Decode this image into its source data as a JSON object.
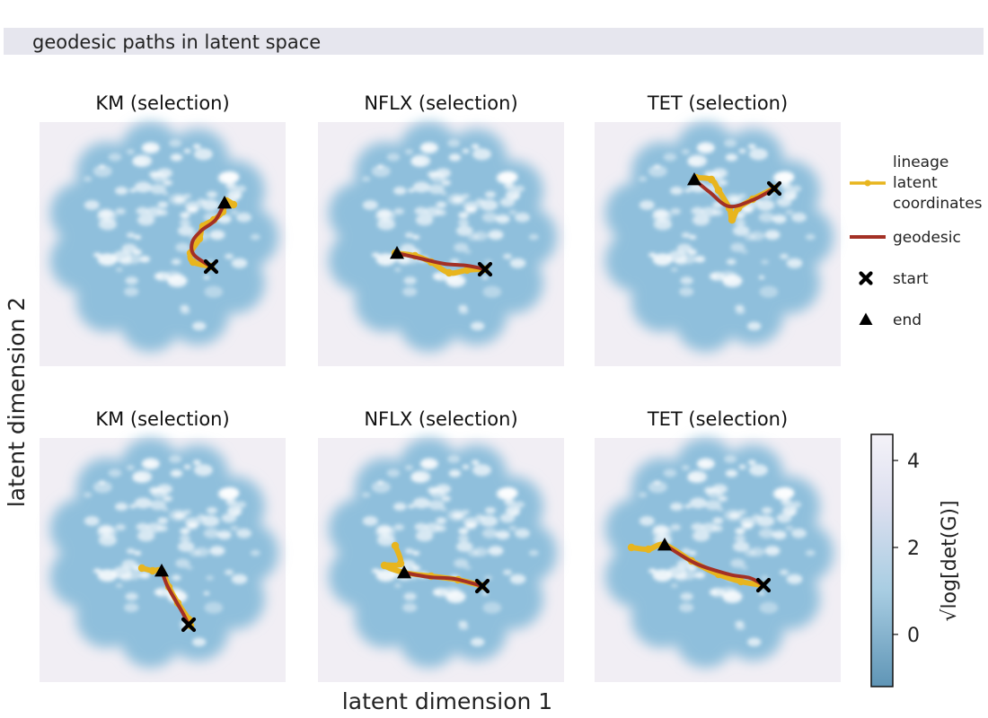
{
  "banner": {
    "text": "geodesic paths in latent space"
  },
  "chart_data": {
    "type": "scatter",
    "xlabel": "latent dimension 1",
    "ylabel": "latent dimension 2",
    "panels": [
      {
        "title": "KM (selection)",
        "row": 0,
        "col": 0,
        "lineage": [
          [
            235,
            297
          ],
          [
            215,
            292
          ],
          [
            212,
            282
          ],
          [
            222,
            266
          ],
          [
            226,
            252
          ],
          [
            238,
            245
          ],
          [
            248,
            236
          ],
          [
            252,
            224
          ],
          [
            260,
            228
          ]
        ],
        "geodesic": [
          [
            235,
            297
          ],
          [
            216,
            284
          ],
          [
            214,
            270
          ],
          [
            224,
            257
          ],
          [
            240,
            245
          ],
          [
            250,
            226
          ]
        ],
        "start": [
          235,
          297
        ],
        "end": [
          250,
          226
        ]
      },
      {
        "title": "NFLX (selection)",
        "row": 0,
        "col": 1,
        "lineage": [
          [
            440,
            282
          ],
          [
            462,
            285
          ],
          [
            480,
            292
          ],
          [
            500,
            304
          ],
          [
            520,
            301
          ],
          [
            540,
            300
          ]
        ],
        "geodesic": [
          [
            442,
            282
          ],
          [
            468,
            288
          ],
          [
            495,
            294
          ],
          [
            520,
            296
          ],
          [
            540,
            300
          ]
        ],
        "start": [
          540,
          300
        ],
        "end": [
          442,
          282
        ]
      },
      {
        "title": "TET (selection)",
        "row": 0,
        "col": 2,
        "lineage": [
          [
            775,
            198
          ],
          [
            792,
            200
          ],
          [
            800,
            212
          ],
          [
            812,
            232
          ],
          [
            815,
            245
          ],
          [
            822,
            232
          ],
          [
            838,
            222
          ],
          [
            862,
            210
          ]
        ],
        "geodesic": [
          [
            773,
            200
          ],
          [
            790,
            214
          ],
          [
            812,
            230
          ],
          [
            840,
            222
          ],
          [
            862,
            210
          ]
        ],
        "start": [
          862,
          210
        ],
        "end": [
          773,
          200
        ]
      },
      {
        "title": "KM (selection)",
        "row": 1,
        "col": 0,
        "lineage": [
          [
            158,
            633
          ],
          [
            170,
            636
          ],
          [
            180,
            636
          ],
          [
            188,
            654
          ],
          [
            198,
            672
          ],
          [
            210,
            690
          ],
          [
            212,
            697
          ]
        ],
        "geodesic": [
          [
            180,
            636
          ],
          [
            186,
            652
          ],
          [
            196,
            670
          ],
          [
            204,
            684
          ],
          [
            210,
            696
          ]
        ],
        "start": [
          210,
          696
        ],
        "end": [
          180,
          636
        ]
      },
      {
        "title": "NFLX (selection)",
        "row": 1,
        "col": 1,
        "lineage": [
          [
            440,
            608
          ],
          [
            446,
            628
          ],
          [
            428,
            630
          ],
          [
            450,
            638
          ],
          [
            480,
            642
          ],
          [
            510,
            646
          ],
          [
            537,
            653
          ]
        ],
        "geodesic": [
          [
            450,
            638
          ],
          [
            478,
            643
          ],
          [
            506,
            645
          ],
          [
            537,
            653
          ]
        ],
        "start": [
          537,
          653
        ],
        "end": [
          450,
          638
        ]
      },
      {
        "title": "TET (selection)",
        "row": 1,
        "col": 2,
        "lineage": [
          [
            703,
            610
          ],
          [
            722,
            612
          ],
          [
            740,
            607
          ],
          [
            770,
            625
          ],
          [
            800,
            640
          ],
          [
            825,
            648
          ],
          [
            848,
            652
          ]
        ],
        "geodesic": [
          [
            740,
            607
          ],
          [
            775,
            628
          ],
          [
            812,
            640
          ],
          [
            835,
            644
          ],
          [
            850,
            652
          ]
        ],
        "start": [
          850,
          652
        ],
        "end": [
          740,
          607
        ]
      }
    ],
    "legend": [
      {
        "label": "lineage",
        "label2": "latent",
        "label3": "coordinates",
        "kind": "lineage"
      },
      {
        "label": "geodesic",
        "kind": "geodesic"
      },
      {
        "label": "start",
        "kind": "start"
      },
      {
        "label": "end",
        "kind": "end"
      }
    ],
    "colorbar": {
      "label": "√log[det(G)]",
      "ticks": [
        4,
        2,
        0
      ],
      "range": [
        -1.2,
        4.6
      ]
    },
    "colors": {
      "lineage": "#e8b51e",
      "geodesic": "#a33025",
      "marker": "#000000",
      "panel_bg": "#f1eef4",
      "manifold": "#8fbfdc",
      "cbar_low": "#5f95b6",
      "cbar_mid": "#a8cde2",
      "cbar_high": "#f4f2f8"
    }
  }
}
